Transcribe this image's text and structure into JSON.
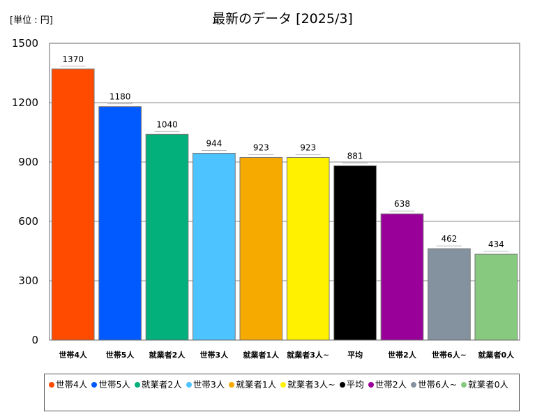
{
  "chart_data": {
    "type": "bar",
    "title": "最新のデータ [2025/3]",
    "unit_label": "[単位 : 円]",
    "xlabel": "",
    "ylabel": "",
    "ylim": [
      0,
      1500
    ],
    "yticks": [
      0,
      300,
      600,
      900,
      1200,
      1500
    ],
    "grid": true,
    "legend_position": "bottom",
    "categories": [
      "世帯4人",
      "世帯5人",
      "就業者2人",
      "世帯3人",
      "就業者1人",
      "就業者3人~",
      "平均",
      "世帯2人",
      "世帯6人~",
      "就業者0人"
    ],
    "values": [
      1370,
      1180,
      1040,
      944,
      923,
      923,
      881,
      638,
      462,
      434
    ],
    "colors": [
      "#ff4b00",
      "#005aff",
      "#03af7a",
      "#4dc4ff",
      "#f6aa00",
      "#fff100",
      "#000000",
      "#990099",
      "#84919e",
      "#87c97e"
    ]
  }
}
